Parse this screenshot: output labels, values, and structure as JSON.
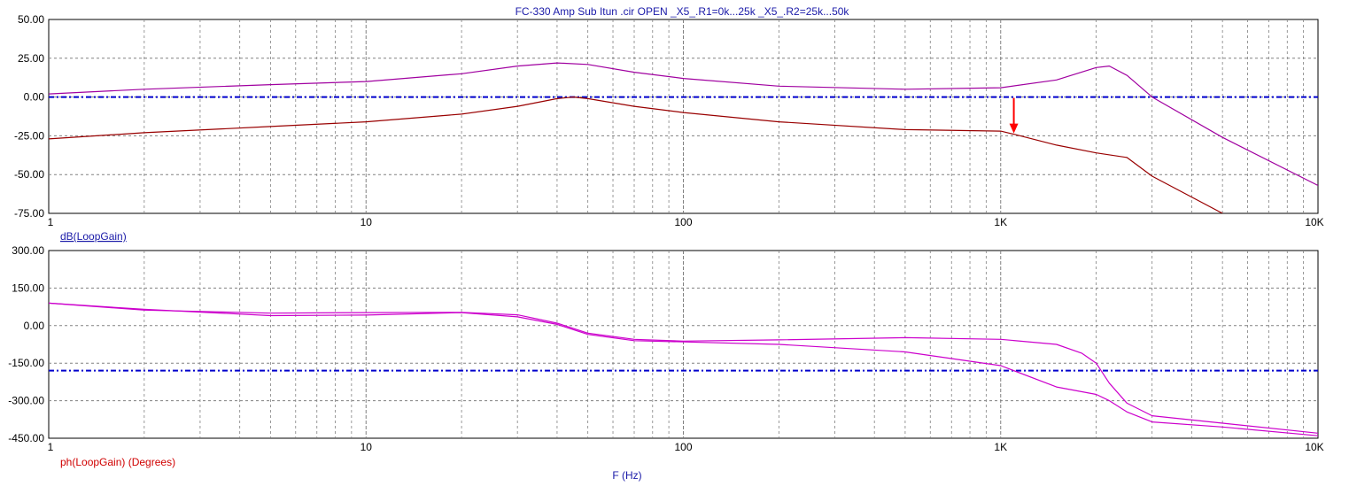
{
  "title": "FC-330 Amp Sub Itun .cir OPEN _X5_.R1=0k...25k _X5_.R2=25k...50k",
  "xlabel": "F (Hz)",
  "colors": {
    "grid": "#808080",
    "frame": "#000000",
    "reference": "#0000cc",
    "trace_a": "#a000a0",
    "trace_b": "#990000",
    "trace_phase": "#cc00cc",
    "marker": "#ff0000"
  },
  "chart_data": [
    {
      "type": "line",
      "ylabel": "dB(LoopGain)",
      "xscale": "log",
      "xlim": [
        1,
        10000
      ],
      "ylim": [
        -75,
        50
      ],
      "xticks": [
        1,
        10,
        100,
        1000,
        10000
      ],
      "xtick_labels": [
        "1",
        "10",
        "100",
        "1K",
        "10K"
      ],
      "yticks": [
        50,
        25,
        0,
        -25,
        -50,
        -75
      ],
      "ytick_labels": [
        "50.00",
        "25.00",
        "0.00",
        "-25.00",
        "-50.00",
        "-75.00"
      ],
      "grid": true,
      "reference_line": 0,
      "marker_x": 1100,
      "series": [
        {
          "x": [
            1,
            2,
            5,
            10,
            20,
            30,
            40,
            50,
            70,
            100,
            200,
            500,
            1000,
            1500,
            2000,
            2200,
            2500,
            3000,
            5000,
            10000
          ],
          "y": [
            2,
            5,
            8,
            10,
            15,
            20,
            22,
            21,
            16,
            12,
            7,
            5,
            6,
            11,
            19,
            20,
            14,
            0,
            -26,
            -57
          ]
        },
        {
          "x": [
            1,
            2,
            5,
            10,
            20,
            30,
            40,
            45,
            50,
            70,
            100,
            200,
            500,
            1000,
            1100,
            1500,
            2000,
            2500,
            3000,
            5000
          ],
          "y": [
            -27,
            -23,
            -19,
            -16,
            -11,
            -6,
            -1,
            0,
            -1,
            -6,
            -10,
            -16,
            -21,
            -22,
            -24,
            -31,
            -36,
            -39,
            -51,
            -75
          ]
        }
      ]
    },
    {
      "type": "line",
      "ylabel": "ph(LoopGain) (Degrees)",
      "xscale": "log",
      "xlim": [
        1,
        10000
      ],
      "ylim": [
        -450,
        300
      ],
      "xticks": [
        1,
        10,
        100,
        1000,
        10000
      ],
      "xtick_labels": [
        "1",
        "10",
        "100",
        "1K",
        "10K"
      ],
      "yticks": [
        300,
        150,
        0,
        -150,
        -300,
        -450
      ],
      "ytick_labels": [
        "300.00",
        "150.00",
        "0.00",
        "-150.00",
        "-300.00",
        "-450.00"
      ],
      "grid": true,
      "reference_line": -180,
      "series": [
        {
          "x": [
            1,
            2,
            5,
            10,
            20,
            30,
            40,
            50,
            70,
            100,
            200,
            500,
            1000,
            1500,
            1800,
            2000,
            2200,
            2500,
            3000,
            5000,
            10000
          ],
          "y": [
            90,
            62,
            50,
            52,
            53,
            43,
            10,
            -30,
            -55,
            -62,
            -57,
            -48,
            -55,
            -75,
            -110,
            -150,
            -230,
            -310,
            -360,
            -390,
            -430
          ]
        },
        {
          "x": [
            1,
            2,
            5,
            10,
            20,
            30,
            40,
            50,
            70,
            100,
            200,
            500,
            1000,
            1500,
            2000,
            2200,
            2500,
            3000,
            5000,
            10000
          ],
          "y": [
            90,
            65,
            40,
            42,
            52,
            35,
            5,
            -35,
            -60,
            -65,
            -75,
            -105,
            -160,
            -245,
            -275,
            -300,
            -345,
            -385,
            -405,
            -440
          ]
        }
      ]
    }
  ]
}
